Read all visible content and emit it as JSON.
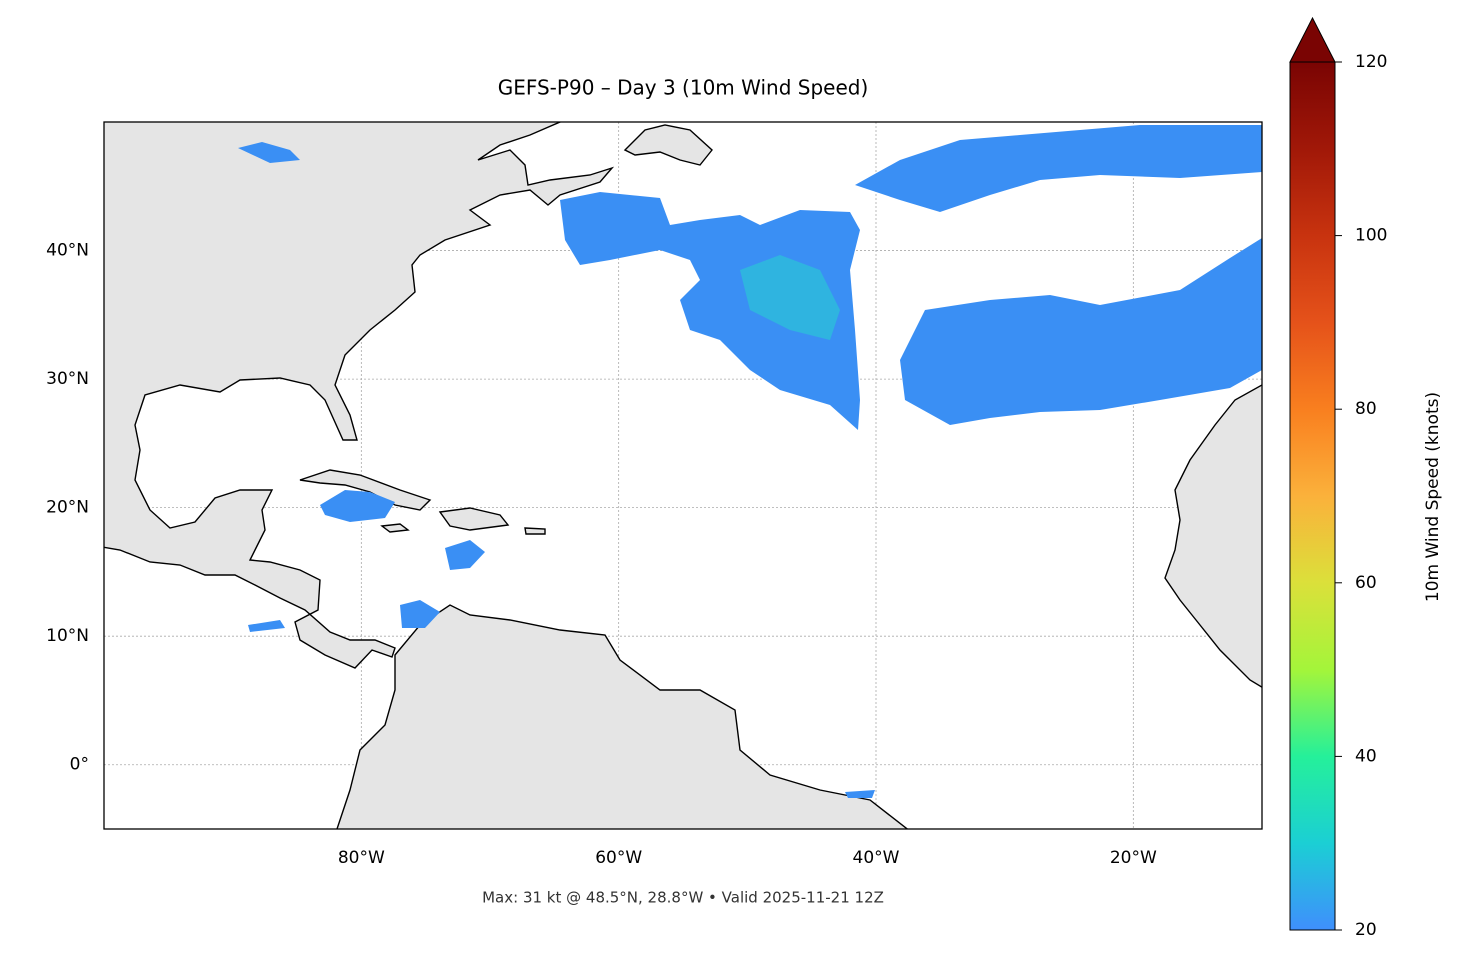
{
  "chart_data": {
    "type": "map",
    "title": "GEFS-P90 – Day 3 (10m Wind Speed)",
    "annotation": "Max: 31 kt @ 48.5°N, 28.8°W • Valid 2025-11-21 12Z",
    "xlim": [
      -100,
      -10
    ],
    "ylim": [
      -5,
      50
    ],
    "xticks": [
      {
        "value": -80,
        "label": "80°W"
      },
      {
        "value": -60,
        "label": "60°W"
      },
      {
        "value": -40,
        "label": "40°W"
      },
      {
        "value": -20,
        "label": "20°W"
      }
    ],
    "yticks": [
      {
        "value": 0,
        "label": "0°"
      },
      {
        "value": 10,
        "label": "10°N"
      },
      {
        "value": 20,
        "label": "20°N"
      },
      {
        "value": 30,
        "label": "30°N"
      },
      {
        "value": 40,
        "label": "40°N"
      }
    ],
    "grid": true,
    "colorbar": {
      "label": "10m Wind Speed (knots)",
      "lim": [
        20,
        120
      ],
      "ticks": [
        20,
        40,
        60,
        80,
        100,
        120
      ],
      "extend": "max",
      "colors": [
        "#3f8ffd",
        "#1bcfd4",
        "#25f09a",
        "#a4f53a",
        "#dbe03a",
        "#fbb13b",
        "#f97f1f",
        "#e5521a",
        "#c8330f",
        "#a11808",
        "#7a0403"
      ]
    }
  }
}
